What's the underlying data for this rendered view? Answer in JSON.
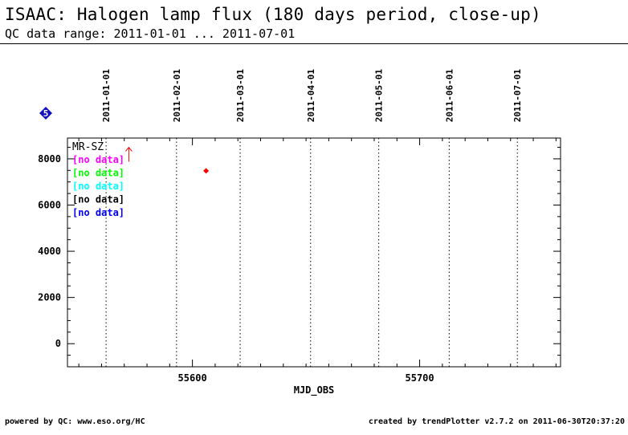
{
  "header": {
    "title": "ISAAC: Halogen lamp flux (180 days period, close-up)",
    "subtitle": "QC data range: 2011-01-01 ... 2011-07-01"
  },
  "footer": {
    "left": "powered by QC: www.eso.org/HC",
    "right": "created by trendPlotter v2.7.2 on 2011-06-30T20:37:20"
  },
  "badge": {
    "label": "5",
    "color": "#1010c0"
  },
  "chart_data": {
    "type": "scatter",
    "title": "",
    "xlabel": "MJD_OBS",
    "ylabel": "",
    "xlim": [
      55545,
      55762
    ],
    "ylim": [
      -1000,
      8900
    ],
    "x_ticks": [
      55600,
      55700
    ],
    "y_ticks": [
      0,
      2000,
      4000,
      6000,
      8000
    ],
    "date_markers": [
      {
        "label": "2011-01-01",
        "x": 55562
      },
      {
        "label": "2011-02-01",
        "x": 55593
      },
      {
        "label": "2011-03-01",
        "x": 55621
      },
      {
        "label": "2011-04-01",
        "x": 55652
      },
      {
        "label": "2011-05-01",
        "x": 55682
      },
      {
        "label": "2011-06-01",
        "x": 55713
      },
      {
        "label": "2011-07-01",
        "x": 55743
      }
    ],
    "legend_title": "MR-SZ",
    "legend": [
      {
        "label": "[no data]",
        "color": "#ff00ff"
      },
      {
        "label": "[no data]",
        "color": "#00ff00"
      },
      {
        "label": "[no data]",
        "color": "#00ffff"
      },
      {
        "label": "[no data]",
        "color": "#000000"
      },
      {
        "label": "[no data]",
        "color": "#0000ff"
      }
    ],
    "series": [
      {
        "color": "#ff0000",
        "points": [
          {
            "x": 55606,
            "y": 7480
          }
        ]
      }
    ],
    "arrow_marker": {
      "x": 55572,
      "y": 8500,
      "color": "#ff0000"
    },
    "grid": false
  }
}
